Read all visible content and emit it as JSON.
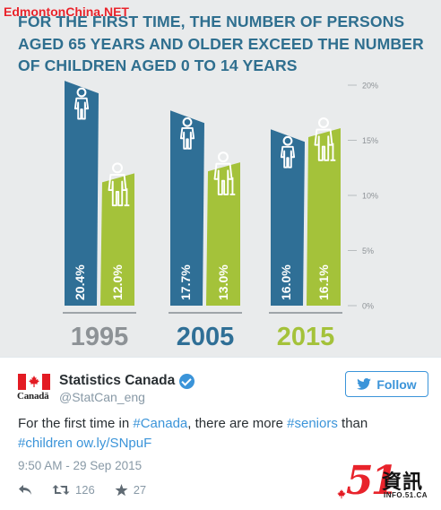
{
  "watermark": "EdmontonChina.NET",
  "headline": {
    "line1": "FOR THE FIRST TIME, THE NUMBER OF PERSONS",
    "line2": "AGED 65 YEARS AND OLDER EXCEED THE NUMBER",
    "line3": "OF CHILDREN AGED 0 TO 14 YEARS"
  },
  "colors": {
    "children": "#2f6f96",
    "seniors": "#a4c23a",
    "headline": "#2f6f8f",
    "year_children_color": "#8d9296",
    "year_seniors_color": "#a4c23a",
    "link": "#3b94d9"
  },
  "chart_data": {
    "type": "bar",
    "categories": [
      "1995",
      "2005",
      "2015"
    ],
    "series": [
      {
        "name": "",
        "values": [
          20.4,
          17.7,
          16.0
        ],
        "labels": [
          "20.4%",
          "17.7%",
          "16.0%"
        ],
        "icon": "child-icon"
      },
      {
        "name": "",
        "values": [
          12.0,
          13.0,
          16.1
        ],
        "labels": [
          "12.0%",
          "13.0%",
          "16.1%"
        ],
        "icon": "senior-icon"
      }
    ],
    "yticks": [
      "0%",
      "5%",
      "10%",
      "15%",
      "20%"
    ],
    "ylim": [
      0,
      20
    ],
    "title": "",
    "xlabel": "",
    "ylabel": ""
  },
  "tweet": {
    "display_name": "Statistics Canada",
    "handle": "@StatCan_eng",
    "wordmark": "Canadä",
    "follow_label": "Follow",
    "text_parts": {
      "p1": "For the first time in ",
      "l1": "#Canada",
      "p2": ", there are more ",
      "l2": "#seniors",
      "p3": " than",
      "l3": "#children",
      "p4": " ",
      "l4": "ow.ly/SNpuF"
    },
    "timestamp": "9:50 AM - 29 Sep 2015",
    "retweets": "126",
    "likes": "27"
  },
  "logo": {
    "digits": "51",
    "chinese": "資訊",
    "sub": "INFO.51.CA"
  }
}
